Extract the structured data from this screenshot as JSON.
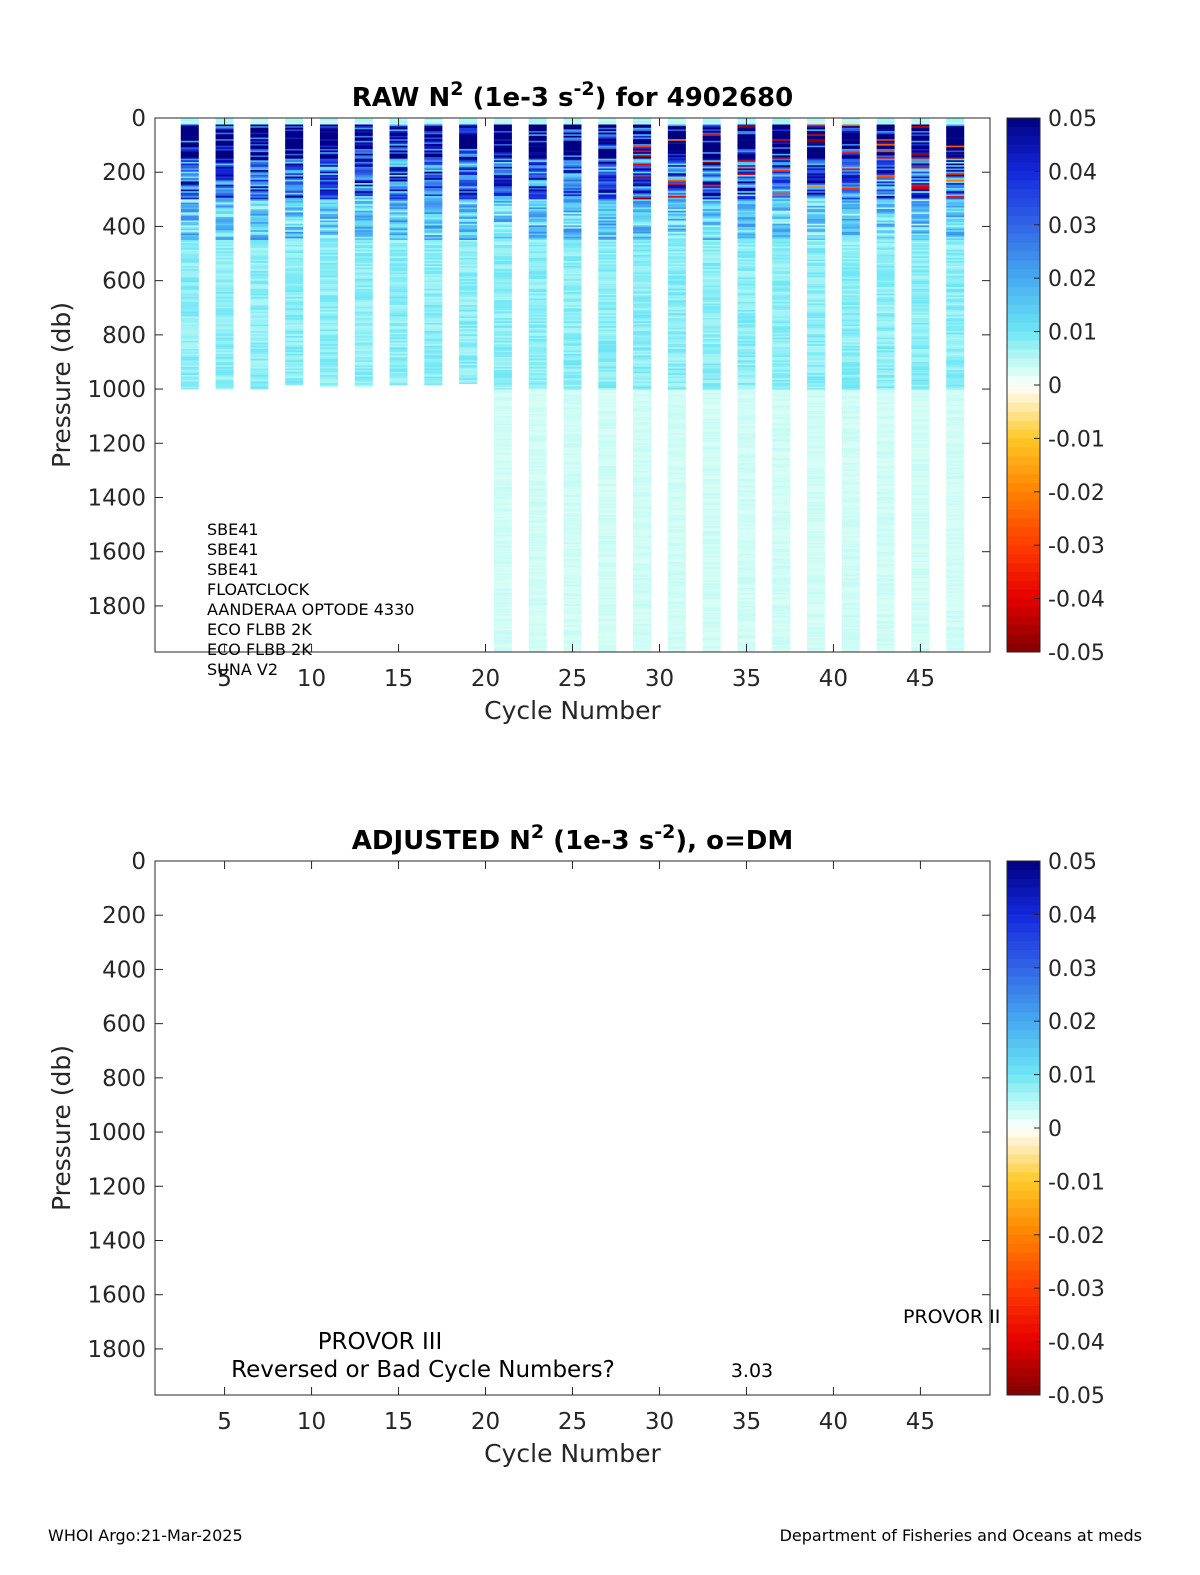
{
  "chart_data": [
    {
      "type": "heatmap",
      "title": "RAW N",
      "title_sup1": "2",
      "title_mid": " (1e-3 s",
      "title_sup2": "-2",
      "title_end": ") for 4902680",
      "xlabel": "Cycle Number",
      "ylabel": "Pressure (db)",
      "xlim": [
        1,
        49
      ],
      "ylim": [
        0,
        1970
      ],
      "y_reversed": true,
      "xticks": [
        5,
        10,
        15,
        20,
        25,
        30,
        35,
        40,
        45
      ],
      "yticks": [
        0,
        200,
        400,
        600,
        800,
        1000,
        1200,
        1400,
        1600,
        1800
      ],
      "colorbar": {
        "range": [
          -0.05,
          0.05
        ],
        "ticks": [
          "0.05",
          "0.04",
          "0.03",
          "0.02",
          "0.01",
          "0",
          "-0.01",
          "-0.02",
          "-0.03",
          "-0.04",
          "-0.05"
        ],
        "colormap": "jet-with-white-center"
      },
      "cycles": [
        3,
        5,
        7,
        9,
        11,
        13,
        15,
        17,
        19,
        21,
        23,
        25,
        27,
        29,
        31,
        33,
        35,
        37,
        39,
        41,
        43,
        45,
        47
      ],
      "profile_max_pressure": [
        1000,
        1000,
        1000,
        985,
        990,
        990,
        985,
        985,
        980,
        1970,
        1970,
        1970,
        1970,
        1970,
        1970,
        1970,
        1970,
        1970,
        1970,
        1970,
        1970,
        1970,
        1970
      ],
      "layers_dbar": [
        {
          "from": 0,
          "to": 20,
          "value": 0.005
        },
        {
          "from": 20,
          "to": 150,
          "value": 0.06
        },
        {
          "from": 150,
          "to": 300,
          "value": 0.03
        },
        {
          "from": 300,
          "to": 450,
          "value": 0.015
        },
        {
          "from": 450,
          "to": 1000,
          "value": 0.008
        },
        {
          "from": 1000,
          "to": 1970,
          "value": 0.003
        }
      ],
      "annotations": [
        "SBE41",
        "SBE41",
        "SBE41",
        "FLOATCLOCK",
        "AANDERAA OPTODE 4330",
        "ECO FLBB 2K",
        "ECO FLBB 2K",
        "SUNA V2"
      ]
    },
    {
      "type": "heatmap",
      "title": "ADJUSTED N",
      "title_sup1": "2",
      "title_mid": " (1e-3 s",
      "title_sup2": "-2",
      "title_end": "), o=DM",
      "xlabel": "Cycle Number",
      "ylabel": "Pressure (db)",
      "xlim": [
        1,
        49
      ],
      "ylim": [
        0,
        1970
      ],
      "y_reversed": true,
      "xticks": [
        5,
        10,
        15,
        20,
        25,
        30,
        35,
        40,
        45
      ],
      "yticks": [
        0,
        200,
        400,
        600,
        800,
        1000,
        1200,
        1400,
        1600,
        1800
      ],
      "colorbar": {
        "range": [
          -0.05,
          0.05
        ],
        "ticks": [
          "0.05",
          "0.04",
          "0.03",
          "0.02",
          "0.01",
          "0",
          "-0.01",
          "-0.02",
          "-0.03",
          "-0.04",
          "-0.05"
        ],
        "colormap": "jet-with-white-center"
      },
      "annotations": [
        "PROVOR III",
        "Reversed or Bad Cycle Numbers?",
        "3.03",
        "PROVOR II"
      ]
    }
  ],
  "footer": {
    "left": "WHOI Argo:21-Mar-2025",
    "right": "Department of Fisheries and Oceans at meds"
  }
}
